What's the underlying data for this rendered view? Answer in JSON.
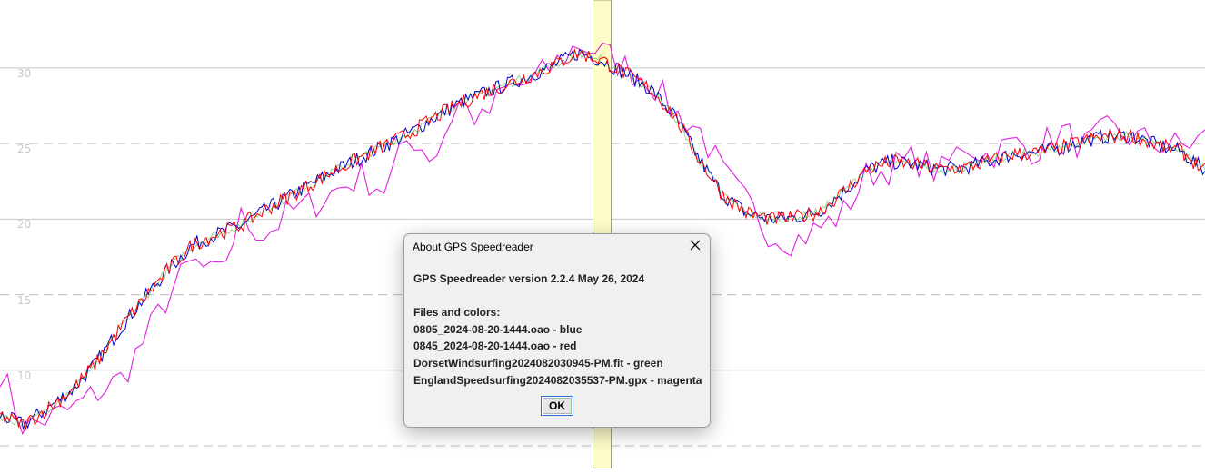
{
  "chart_data": {
    "type": "line",
    "title": "",
    "xlabel": "",
    "ylabel": "",
    "y_ticks": [
      "30",
      "25",
      "20",
      "15",
      "10"
    ],
    "ylim": [
      3.5,
      34.5
    ],
    "solid_gridlines_at": [
      10,
      20,
      30
    ],
    "dashed_gridlines_at": [
      5,
      15,
      25
    ],
    "cursor_highlight_fraction": 0.4997,
    "series": [
      {
        "name": "0805_2024-08-20-1444.oao",
        "color": "#0000cc",
        "values": [
          7.0,
          6.4,
          7.5,
          8.7,
          10.5,
          12.8,
          14.8,
          16.7,
          18.3,
          19.0,
          19.6,
          20.6,
          21.5,
          22.4,
          23.3,
          24.1,
          24.9,
          25.7,
          26.7,
          27.6,
          28.3,
          28.9,
          29.5,
          30.2,
          31.0,
          30.5,
          29.6,
          28.6,
          26.8,
          24.0,
          21.6,
          20.4,
          20.0,
          20.1,
          20.5,
          21.8,
          23.3,
          23.8,
          23.6,
          23.3,
          23.4,
          23.8,
          24.3,
          24.4,
          24.7,
          25.2,
          25.5,
          25.5,
          24.9,
          24.5,
          23.2
        ]
      },
      {
        "name": "0845_2024-08-20-1444.oao",
        "color": "#ff0000",
        "values": [
          7.0,
          6.4,
          7.5,
          8.7,
          10.5,
          12.8,
          14.8,
          16.7,
          18.3,
          19.0,
          19.6,
          20.6,
          21.5,
          22.4,
          23.3,
          24.1,
          24.9,
          25.7,
          26.7,
          27.6,
          28.3,
          28.9,
          29.5,
          30.2,
          31.0,
          30.5,
          29.6,
          28.6,
          26.8,
          24.0,
          21.6,
          20.4,
          20.0,
          20.1,
          20.5,
          21.8,
          23.3,
          23.8,
          23.6,
          23.3,
          23.4,
          23.8,
          24.3,
          24.4,
          24.7,
          25.2,
          25.5,
          25.5,
          24.9,
          24.5,
          23.2
        ]
      },
      {
        "name": "DorsetWindsurfing2024082030945-PM.fit",
        "color": "#00a000",
        "values": [
          7.0,
          6.4,
          7.5,
          8.7,
          10.5,
          12.8,
          14.8,
          16.7,
          18.3,
          19.0,
          19.6,
          20.6,
          21.5,
          22.4,
          23.3,
          24.1,
          24.9,
          25.7,
          26.7,
          27.6,
          28.3,
          28.9,
          29.5,
          30.2,
          31.0,
          30.5,
          29.6,
          28.6,
          26.8,
          24.0,
          21.6,
          20.4,
          20.0,
          20.1,
          20.5,
          21.8,
          23.3,
          23.8,
          23.6,
          23.3,
          23.4,
          23.8,
          24.3,
          24.4,
          24.7,
          25.2,
          25.5,
          25.5,
          24.9,
          24.5,
          23.2
        ]
      },
      {
        "name": "EnglandSpeedsurfing2024082035537-PM.gpx",
        "color": "#e020e0",
        "values": [
          10.0,
          6.2,
          6.8,
          7.4,
          8.5,
          9.4,
          12.0,
          15.0,
          17.2,
          16.0,
          20.0,
          19.0,
          20.4,
          21.0,
          22.0,
          22.8,
          22.0,
          25.6,
          24.0,
          27.8,
          26.4,
          28.6,
          29.0,
          30.2,
          31.6,
          31.0,
          30.0,
          29.2,
          27.0,
          26.0,
          23.0,
          21.0,
          19.0,
          18.6,
          19.4,
          20.4,
          23.0,
          23.4,
          24.0,
          23.0,
          25.0,
          24.2,
          25.0,
          24.6,
          25.8,
          24.8,
          25.9,
          25.4,
          25.0,
          24.8,
          25.4
        ]
      }
    ]
  },
  "dialog": {
    "title": "About GPS Speedreader",
    "version_line": "GPS Speedreader version 2.2.4 May 26, 2024",
    "files_header": "Files and colors:",
    "files": [
      "0805_2024-08-20-1444.oao - blue",
      "0845_2024-08-20-1444.oao - red",
      "DorsetWindsurfing2024082030945-PM.fit - green",
      "EnglandSpeedsurfing2024082035537-PM.gpx - magenta"
    ],
    "ok_label": "OK",
    "close_icon": "close-icon"
  }
}
